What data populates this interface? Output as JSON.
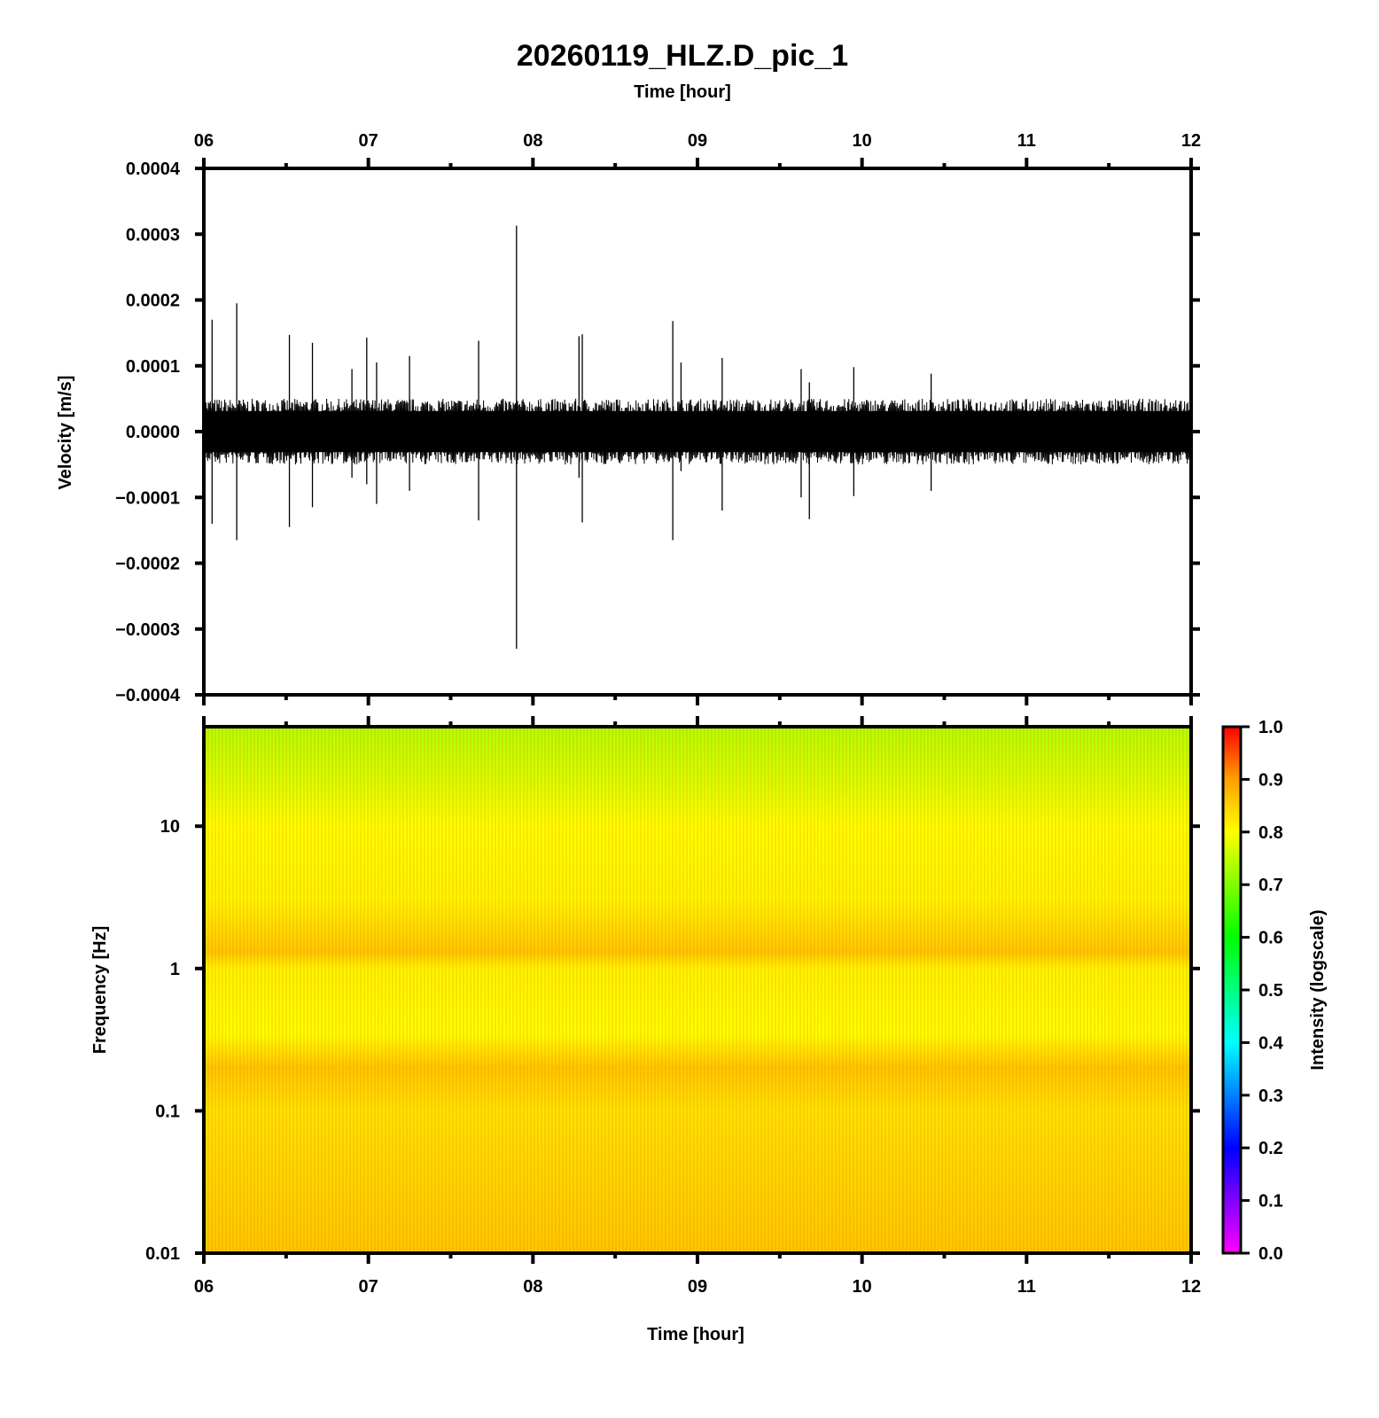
{
  "title": "20260119_HLZ.D_pic_1",
  "colors": {
    "colormap": [
      "#ff00ff",
      "#8000ff",
      "#0000ff",
      "#0080ff",
      "#00ffff",
      "#00ff80",
      "#00ff00",
      "#80ff00",
      "#ffff00",
      "#ffa000",
      "#ff0000"
    ]
  },
  "chart_data": [
    {
      "type": "line",
      "panel": "waveform",
      "xlabel": "Time [hour]",
      "ylabel": "Velocity [m/s]",
      "xlim": [
        6,
        12
      ],
      "ylim": [
        -0.0004,
        0.0004
      ],
      "x_ticks": [
        "06",
        "07",
        "08",
        "09",
        "10",
        "11",
        "12"
      ],
      "y_ticks": [
        "0.0004",
        "0.0003",
        "0.0002",
        "0.0001",
        "0.0000",
        "−0.0001",
        "−0.0002",
        "−0.0003",
        "−0.0004"
      ],
      "grid": false,
      "background_noise_amplitude": 4e-05,
      "spikes": [
        {
          "t": 6.05,
          "max": 0.00017,
          "min": -0.00014
        },
        {
          "t": 6.2,
          "max": 0.000195,
          "min": -0.000165
        },
        {
          "t": 6.52,
          "max": 0.000147,
          "min": -0.000145
        },
        {
          "t": 6.66,
          "max": 0.000135,
          "min": -0.000115
        },
        {
          "t": 6.9,
          "max": 9.5e-05,
          "min": -7e-05
        },
        {
          "t": 6.99,
          "max": 0.000143,
          "min": -8e-05
        },
        {
          "t": 7.05,
          "max": 0.000105,
          "min": -0.00011
        },
        {
          "t": 7.25,
          "max": 0.000115,
          "min": -9e-05
        },
        {
          "t": 7.67,
          "max": 0.000138,
          "min": -0.000135
        },
        {
          "t": 7.9,
          "max": 0.000313,
          "min": -0.00033
        },
        {
          "t": 8.28,
          "max": 0.000145,
          "min": -7e-05
        },
        {
          "t": 8.3,
          "max": 0.000148,
          "min": -0.000138
        },
        {
          "t": 8.85,
          "max": 0.000168,
          "min": -0.000165
        },
        {
          "t": 8.9,
          "max": 0.000105,
          "min": -6e-05
        },
        {
          "t": 9.15,
          "max": 0.000112,
          "min": -0.00012
        },
        {
          "t": 9.63,
          "max": 9.5e-05,
          "min": -0.0001
        },
        {
          "t": 9.68,
          "max": 7.5e-05,
          "min": -0.000133
        },
        {
          "t": 9.95,
          "max": 9.8e-05,
          "min": -9.8e-05
        },
        {
          "t": 10.42,
          "max": 8.8e-05,
          "min": -9e-05
        }
      ]
    },
    {
      "type": "heatmap",
      "panel": "spectrogram",
      "xlabel": "Time [hour]",
      "ylabel": "Frequency [Hz]",
      "xlim": [
        6,
        12
      ],
      "ylim": [
        0.01,
        50
      ],
      "y_scale": "log",
      "x_ticks": [
        "06",
        "07",
        "08",
        "09",
        "10",
        "11",
        "12"
      ],
      "y_ticks": [
        "10",
        "1",
        "0.1",
        "0.01"
      ],
      "colorbar": {
        "label": "Intensity (logscale)",
        "range": [
          0.0,
          1.0
        ],
        "ticks": [
          "1.0",
          "0.9",
          "0.8",
          "0.7",
          "0.6",
          "0.5",
          "0.4",
          "0.3",
          "0.2",
          "0.1",
          "0.0"
        ]
      },
      "intensity_profile": [
        {
          "freq": 50,
          "intensity": 0.74
        },
        {
          "freq": 20,
          "intensity": 0.77
        },
        {
          "freq": 10,
          "intensity": 0.8
        },
        {
          "freq": 3,
          "intensity": 0.81
        },
        {
          "freq": 1.3,
          "intensity": 0.86
        },
        {
          "freq": 1,
          "intensity": 0.81
        },
        {
          "freq": 0.35,
          "intensity": 0.8
        },
        {
          "freq": 0.2,
          "intensity": 0.86
        },
        {
          "freq": 0.1,
          "intensity": 0.83
        },
        {
          "freq": 0.01,
          "intensity": 0.86
        }
      ]
    }
  ]
}
